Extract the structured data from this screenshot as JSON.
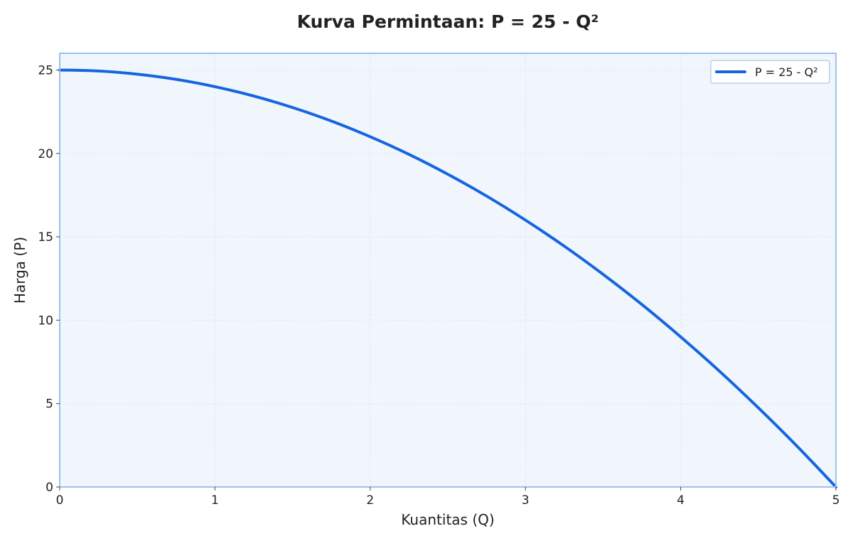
{
  "chart_data": {
    "type": "line",
    "title": "Kurva Permintaan: P = 25 - Q²",
    "xlabel": "Kuantitas (Q)",
    "ylabel": "Harga (P)",
    "xlim": [
      0,
      5
    ],
    "ylim": [
      0,
      26
    ],
    "xticks": [
      "0",
      "1",
      "2",
      "3",
      "4",
      "5"
    ],
    "yticks": [
      "0",
      "5",
      "10",
      "15",
      "20",
      "25"
    ],
    "grid": true,
    "legend_position": "top-right",
    "series": [
      {
        "name": "P = 25 - Q²",
        "color": "#1565e0",
        "x": [
          0,
          0.25,
          0.5,
          0.75,
          1,
          1.25,
          1.5,
          1.75,
          2,
          2.25,
          2.5,
          2.75,
          3,
          3.25,
          3.5,
          3.75,
          4,
          4.25,
          4.5,
          4.75,
          5
        ],
        "y": [
          25,
          24.94,
          24.75,
          24.44,
          24,
          23.44,
          22.75,
          21.94,
          21,
          19.94,
          18.75,
          17.44,
          16,
          14.44,
          12.75,
          10.94,
          9,
          6.94,
          4.75,
          2.44,
          0
        ]
      }
    ],
    "colors": {
      "plot_background": "#f1f6fd",
      "plot_border": "#9cc0f2",
      "grid": "#dde6f2"
    }
  }
}
